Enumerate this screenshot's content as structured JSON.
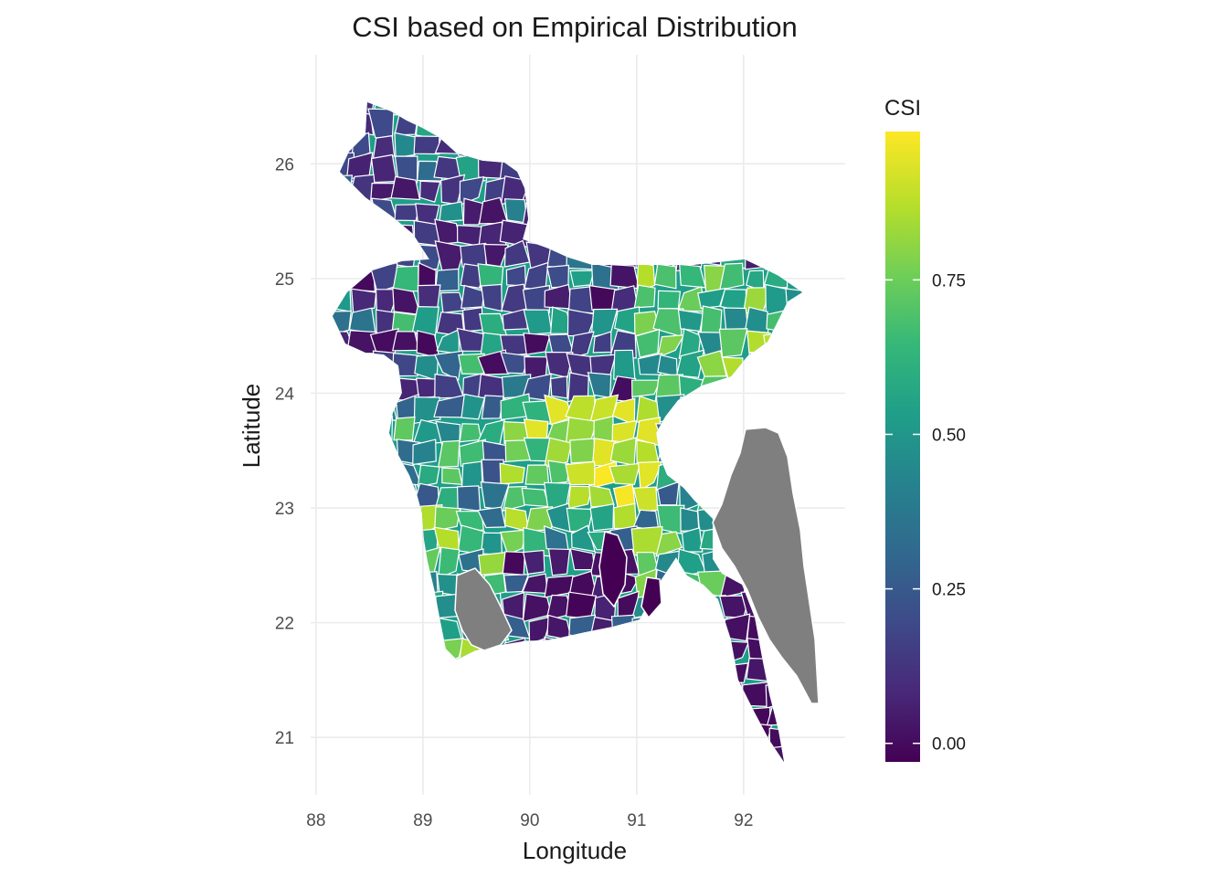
{
  "chart_data": {
    "type": "choropleth map",
    "title": "CSI based on Empirical Distribution",
    "xlabel": "Longitude",
    "ylabel": "Latitude",
    "xlim": [
      87.95,
      92.95
    ],
    "ylim": [
      20.5,
      26.95
    ],
    "x_ticks": [
      "88",
      "89",
      "90",
      "91",
      "92"
    ],
    "y_ticks": [
      "21",
      "22",
      "23",
      "24",
      "25",
      "26"
    ],
    "grid": true,
    "legend": {
      "title": "CSI",
      "placement": "right",
      "range": [
        -0.03,
        0.99
      ],
      "ticks": [
        "0.00",
        "0.25",
        "0.50",
        "0.75"
      ],
      "palette": [
        "#440154",
        "#482878",
        "#3e4a89",
        "#31688e",
        "#26828e",
        "#1f9e89",
        "#35b779",
        "#6ece58",
        "#b5de2b",
        "#fde725"
      ]
    },
    "missing_color": "#7f7f7f",
    "border_color": "#ffffff"
  }
}
